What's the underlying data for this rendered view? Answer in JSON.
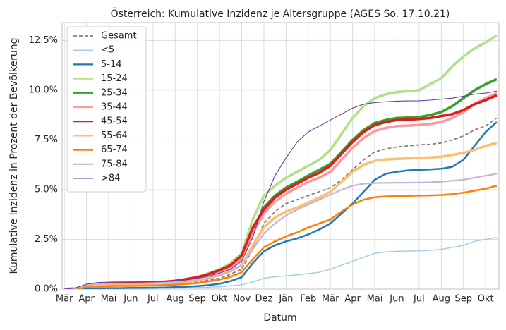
{
  "chart_data": {
    "type": "line",
    "title": "Österreich: Kumulative Inzidenz je Altersgruppe (AGES So. 17.10.21)",
    "xlabel": "Datum",
    "ylabel": "Kumulative Inzidenz in Prozent der Bevölkerung",
    "categories": [
      "Mär",
      null,
      "Apr",
      null,
      "Mai",
      null,
      "Jun",
      null,
      "Jul",
      null,
      "Aug",
      null,
      "Sep",
      null,
      "Okt",
      null,
      "Nov",
      null,
      "Dez",
      null,
      "Jän",
      null,
      "Feb",
      null,
      "Mär",
      null,
      "Apr",
      null,
      "Mai",
      null,
      "Jun",
      null,
      "Jul",
      null,
      "Aug",
      null,
      "Sep",
      null,
      "Okt",
      null
    ],
    "ylim": [
      0,
      13.4
    ],
    "yticks": [
      {
        "value": 0,
        "label": "0.0%"
      },
      {
        "value": 2.5,
        "label": "2.5%"
      },
      {
        "value": 5,
        "label": "5.0%"
      },
      {
        "value": 7.5,
        "label": "7.5%"
      },
      {
        "value": 10,
        "label": "10.0%"
      },
      {
        "value": 12.5,
        "label": "12.5%"
      }
    ],
    "grid": true,
    "legend": "upper left",
    "series": [
      {
        "name": "Gesamt",
        "color": "#808080",
        "linewidth": 1.8,
        "linestyle": "dashed",
        "values": [
          0,
          0.02,
          0.1,
          0.15,
          0.17,
          0.18,
          0.19,
          0.2,
          0.22,
          0.25,
          0.28,
          0.32,
          0.38,
          0.45,
          0.55,
          0.75,
          1.0,
          2.0,
          3.3,
          3.9,
          4.3,
          4.5,
          4.7,
          4.9,
          5.1,
          5.5,
          6.0,
          6.5,
          6.9,
          7.05,
          7.15,
          7.2,
          7.25,
          7.28,
          7.35,
          7.5,
          7.7,
          8.0,
          8.2,
          8.6
        ]
      },
      {
        "name": "<5",
        "color": "#a6cee3",
        "linewidth": 1.5,
        "linestyle": "solid",
        "values": [
          0,
          0,
          0,
          0.01,
          0.01,
          0.01,
          0.02,
          0.02,
          0.03,
          0.04,
          0.05,
          0.06,
          0.08,
          0.1,
          0.12,
          0.16,
          0.22,
          0.35,
          0.55,
          0.62,
          0.67,
          0.72,
          0.78,
          0.85,
          1.0,
          1.2,
          1.4,
          1.6,
          1.8,
          1.87,
          1.9,
          1.91,
          1.92,
          1.95,
          2.0,
          2.1,
          2.2,
          2.4,
          2.5,
          2.6
        ]
      },
      {
        "name": "5-14",
        "color": "#1f78b4",
        "linewidth": 2.5,
        "linestyle": "solid",
        "values": [
          0,
          0,
          0.02,
          0.04,
          0.05,
          0.05,
          0.06,
          0.06,
          0.07,
          0.08,
          0.1,
          0.12,
          0.15,
          0.2,
          0.27,
          0.4,
          0.6,
          1.3,
          1.9,
          2.2,
          2.4,
          2.55,
          2.75,
          3.0,
          3.3,
          3.8,
          4.3,
          4.9,
          5.5,
          5.8,
          5.9,
          5.97,
          6.0,
          6.02,
          6.05,
          6.15,
          6.5,
          7.2,
          7.9,
          8.4
        ]
      },
      {
        "name": "15-24",
        "color": "#b2df8a",
        "linewidth": 3.5,
        "linestyle": "solid",
        "values": [
          0,
          0.02,
          0.12,
          0.2,
          0.22,
          0.23,
          0.25,
          0.27,
          0.3,
          0.35,
          0.4,
          0.5,
          0.6,
          0.8,
          1.0,
          1.3,
          1.8,
          3.5,
          4.7,
          5.2,
          5.6,
          5.9,
          6.2,
          6.5,
          7.0,
          7.8,
          8.6,
          9.2,
          9.6,
          9.8,
          9.9,
          9.95,
          10.0,
          10.3,
          10.6,
          11.2,
          11.7,
          12.1,
          12.4,
          12.75
        ]
      },
      {
        "name": "25-34",
        "color": "#33a02c",
        "linewidth": 3.5,
        "linestyle": "solid",
        "values": [
          0,
          0.03,
          0.15,
          0.22,
          0.24,
          0.25,
          0.27,
          0.29,
          0.31,
          0.35,
          0.4,
          0.48,
          0.58,
          0.75,
          0.95,
          1.2,
          1.6,
          3.0,
          4.1,
          4.7,
          5.1,
          5.4,
          5.7,
          6.0,
          6.3,
          6.9,
          7.5,
          8.0,
          8.35,
          8.5,
          8.6,
          8.62,
          8.65,
          8.75,
          8.9,
          9.2,
          9.6,
          10.0,
          10.3,
          10.55
        ]
      },
      {
        "name": "35-44",
        "color": "#fb9a99",
        "linewidth": 3.5,
        "linestyle": "solid",
        "values": [
          0,
          0.03,
          0.15,
          0.2,
          0.22,
          0.23,
          0.25,
          0.27,
          0.29,
          0.32,
          0.37,
          0.44,
          0.52,
          0.67,
          0.85,
          1.1,
          1.5,
          2.8,
          3.8,
          4.4,
          4.8,
          5.1,
          5.4,
          5.6,
          5.9,
          6.5,
          7.1,
          7.6,
          7.95,
          8.1,
          8.2,
          8.22,
          8.25,
          8.3,
          8.4,
          8.6,
          8.9,
          9.3,
          9.6,
          9.85
        ]
      },
      {
        "name": "45-54",
        "color": "#e31a1c",
        "linewidth": 3.5,
        "linestyle": "solid",
        "values": [
          0,
          0.03,
          0.18,
          0.25,
          0.27,
          0.28,
          0.3,
          0.32,
          0.34,
          0.37,
          0.42,
          0.5,
          0.6,
          0.75,
          0.95,
          1.2,
          1.7,
          3.1,
          4.0,
          4.6,
          5.0,
          5.3,
          5.6,
          5.85,
          6.2,
          6.8,
          7.4,
          7.9,
          8.25,
          8.4,
          8.5,
          8.52,
          8.55,
          8.6,
          8.7,
          8.8,
          9.0,
          9.3,
          9.5,
          9.75
        ]
      },
      {
        "name": "55-64",
        "color": "#fdbf6f",
        "linewidth": 3.5,
        "linestyle": "solid",
        "values": [
          0,
          0.02,
          0.12,
          0.17,
          0.18,
          0.19,
          0.2,
          0.21,
          0.23,
          0.26,
          0.3,
          0.36,
          0.44,
          0.55,
          0.7,
          0.9,
          1.2,
          2.2,
          3.1,
          3.6,
          3.9,
          4.1,
          4.35,
          4.6,
          4.9,
          5.4,
          5.9,
          6.25,
          6.45,
          6.52,
          6.55,
          6.57,
          6.6,
          6.62,
          6.65,
          6.75,
          6.85,
          7.0,
          7.2,
          7.35
        ]
      },
      {
        "name": "65-74",
        "color": "#ff7f00",
        "linewidth": 2.5,
        "linestyle": "solid",
        "values": [
          0,
          0.02,
          0.1,
          0.14,
          0.15,
          0.16,
          0.16,
          0.17,
          0.18,
          0.2,
          0.22,
          0.26,
          0.3,
          0.38,
          0.48,
          0.62,
          0.85,
          1.5,
          2.1,
          2.4,
          2.65,
          2.85,
          3.1,
          3.3,
          3.5,
          3.9,
          4.25,
          4.5,
          4.62,
          4.66,
          4.68,
          4.69,
          4.7,
          4.71,
          4.73,
          4.78,
          4.85,
          4.95,
          5.05,
          5.2
        ]
      },
      {
        "name": "75-84",
        "color": "#cab2d6",
        "linewidth": 2.2,
        "linestyle": "solid",
        "values": [
          0,
          0.03,
          0.2,
          0.26,
          0.27,
          0.28,
          0.28,
          0.29,
          0.3,
          0.32,
          0.35,
          0.4,
          0.46,
          0.56,
          0.7,
          0.9,
          1.2,
          2.0,
          2.8,
          3.3,
          3.7,
          4.0,
          4.25,
          4.5,
          4.75,
          5.0,
          5.2,
          5.3,
          5.33,
          5.34,
          5.35,
          5.35,
          5.36,
          5.37,
          5.4,
          5.45,
          5.5,
          5.6,
          5.7,
          5.8
        ]
      },
      {
        "name": ">84",
        "color": "#6a3d9a",
        "linewidth": 1.1,
        "linestyle": "solid",
        "values": [
          0,
          0.05,
          0.25,
          0.33,
          0.35,
          0.36,
          0.36,
          0.37,
          0.38,
          0.4,
          0.43,
          0.48,
          0.55,
          0.65,
          0.8,
          1.0,
          1.4,
          2.6,
          4.4,
          5.7,
          6.6,
          7.4,
          7.9,
          8.2,
          8.5,
          8.8,
          9.1,
          9.3,
          9.38,
          9.42,
          9.45,
          9.46,
          9.47,
          9.5,
          9.55,
          9.6,
          9.7,
          9.8,
          9.85,
          9.95
        ]
      }
    ]
  }
}
